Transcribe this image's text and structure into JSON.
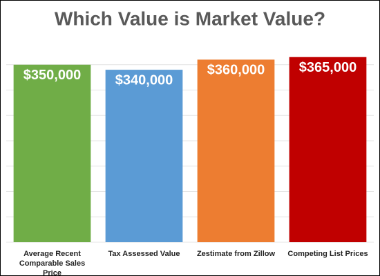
{
  "chart_data": {
    "type": "bar",
    "title": "Which Value is Market Value?",
    "categories": [
      "Average Recent Comparable Sales Price",
      "Tax Assessed Value",
      "Zestimate from Zillow",
      "Competing List Prices"
    ],
    "values": [
      350000,
      340000,
      360000,
      365000
    ],
    "value_labels": [
      "$350,000",
      "$340,000",
      "$360,000",
      "$365,000"
    ],
    "colors": [
      "#70ad47",
      "#5b9bd5",
      "#ed7d31",
      "#c00000"
    ],
    "ylim": [
      0,
      400000
    ],
    "yticks": [
      0,
      50000,
      100000,
      150000,
      200000,
      250000,
      300000,
      350000
    ],
    "grid": true
  }
}
